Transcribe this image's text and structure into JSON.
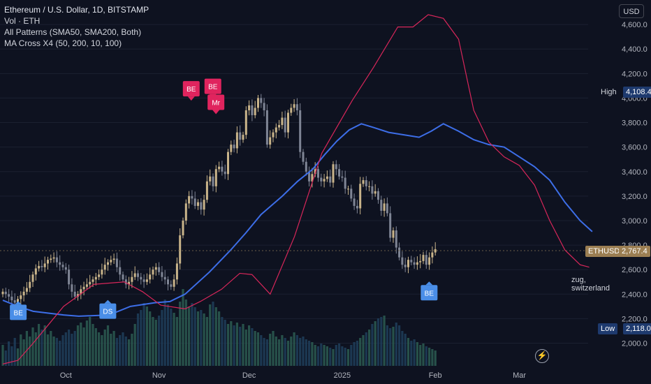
{
  "legend": {
    "title": "Ethereum / U.S. Dollar, 1D, BITSTAMP",
    "vol": "Vol · ETH",
    "patterns": "All Patterns (SMA50, SMA200, Both)",
    "macross": "MA Cross X4 (50, 200, 10, 100)"
  },
  "currency": "USD",
  "tags": {
    "high_label": "High",
    "high_value": "4,108.4",
    "symbol": "ETHUSD",
    "symbol_value": "2,767.4",
    "low_label": "Low",
    "low_value": "2,118.0"
  },
  "location": "zug, switzerland",
  "colors": {
    "bg": "#0e1220",
    "grid": "#1b2030",
    "up": "#c9b48a",
    "down": "#7f8595",
    "sma_slow": "#3d6ee8",
    "sma_fast": "#d8265a",
    "bear": "#e0245e",
    "bull": "#4a8ee8",
    "vol_up": "#2b5d52",
    "vol_down": "#1f3f5c"
  },
  "chart_data": {
    "type": "candlestick",
    "y_ticks": [
      "4,600.0",
      "4,400.0",
      "4,200.0",
      "4,000.0",
      "3,800.0",
      "3,600.0",
      "3,400.0",
      "3,200.0",
      "3,000.0",
      "2,800.0",
      "2,600.0",
      "2,400.0",
      "2,200.0",
      "2,000.0"
    ],
    "y_values": [
      4600,
      4400,
      4200,
      4000,
      3800,
      3600,
      3400,
      3200,
      3000,
      2800,
      2600,
      2400,
      2200,
      2000
    ],
    "ylim": [
      1815,
      4800
    ],
    "x_labels": [
      {
        "label": "Oct",
        "day": 0
      },
      {
        "label": "Nov",
        "day": 31
      },
      {
        "label": "Dec",
        "day": 61
      },
      {
        "label": "2025",
        "day": 92
      },
      {
        "label": "Feb",
        "day": 123
      },
      {
        "label": "Mar",
        "day": 151
      }
    ],
    "days": 145,
    "first_day": -21,
    "closes": [
      2420,
      2400,
      2380,
      2350,
      2330,
      2360,
      2390,
      2420,
      2450,
      2500,
      2560,
      2610,
      2630,
      2620,
      2650,
      2680,
      2690,
      2700,
      2660,
      2640,
      2620,
      2600,
      2480,
      2420,
      2380,
      2400,
      2440,
      2460,
      2480,
      2500,
      2520,
      2540,
      2560,
      2600,
      2640,
      2660,
      2680,
      2690,
      2620,
      2560,
      2520,
      2480,
      2500,
      2540,
      2570,
      2540,
      2520,
      2500,
      2520,
      2560,
      2600,
      2620,
      2580,
      2540,
      2520,
      2480,
      2460,
      2520,
      2650,
      2880,
      3000,
      3140,
      3200,
      3180,
      3120,
      3150,
      3090,
      3170,
      3320,
      3360,
      3280,
      3420,
      3440,
      3400,
      3380,
      3560,
      3620,
      3590,
      3720,
      3660,
      3700,
      3900,
      3940,
      3860,
      3920,
      4000,
      3960,
      3900,
      3620,
      3680,
      3720,
      3760,
      3780,
      3840,
      3720,
      3880,
      3920,
      3950,
      3900,
      3560,
      3480,
      3400,
      3320,
      3380,
      3420,
      3350,
      3320,
      3340,
      3360,
      3310,
      3460,
      3420,
      3360,
      3350,
      3260,
      3260,
      3180,
      3120,
      3100,
      3300,
      3330,
      3280,
      3280,
      3220,
      3240,
      3170,
      3080,
      3140,
      3060,
      2860,
      2920,
      2780,
      2700,
      2640,
      2620,
      2680,
      2660,
      2640,
      2660,
      2670,
      2720,
      2640,
      2700,
      2740,
      2767
    ],
    "series": [
      {
        "name": "SMA50",
        "values_key": "sma50"
      },
      {
        "name": "SMA200",
        "values_key": "sma200"
      }
    ],
    "sma200": [
      [
        0,
        2350
      ],
      [
        5,
        2300
      ],
      [
        10,
        2260
      ],
      [
        20,
        2230
      ],
      [
        25,
        2220
      ],
      [
        35,
        2230
      ],
      [
        42,
        2300
      ],
      [
        50,
        2330
      ],
      [
        55,
        2340
      ],
      [
        60,
        2400
      ],
      [
        68,
        2580
      ],
      [
        75,
        2760
      ],
      [
        80,
        2900
      ],
      [
        85,
        3050
      ],
      [
        92,
        3200
      ],
      [
        97,
        3320
      ],
      [
        102,
        3420
      ],
      [
        106,
        3540
      ],
      [
        110,
        3650
      ],
      [
        114,
        3740
      ],
      [
        118,
        3790
      ],
      [
        122,
        3760
      ],
      [
        127,
        3720
      ],
      [
        132,
        3700
      ],
      [
        137,
        3680
      ],
      [
        141,
        3730
      ],
      [
        145,
        3790
      ],
      [
        150,
        3730
      ],
      [
        155,
        3660
      ],
      [
        160,
        3620
      ],
      [
        165,
        3600
      ],
      [
        170,
        3520
      ],
      [
        175,
        3440
      ],
      [
        180,
        3330
      ],
      [
        185,
        3150
      ],
      [
        190,
        3000
      ],
      [
        194,
        2910
      ]
    ],
    "sma50": [
      [
        0,
        1830
      ],
      [
        5,
        1860
      ],
      [
        10,
        2000
      ],
      [
        15,
        2150
      ],
      [
        20,
        2300
      ],
      [
        30,
        2480
      ],
      [
        40,
        2500
      ],
      [
        46,
        2420
      ],
      [
        52,
        2310
      ],
      [
        60,
        2280
      ],
      [
        65,
        2340
      ],
      [
        72,
        2440
      ],
      [
        78,
        2570
      ],
      [
        82,
        2560
      ],
      [
        88,
        2400
      ],
      [
        96,
        2870
      ],
      [
        105,
        3550
      ],
      [
        115,
        3980
      ],
      [
        122,
        4250
      ],
      [
        130,
        4580
      ],
      [
        135,
        4580
      ],
      [
        140,
        4680
      ],
      [
        145,
        4650
      ],
      [
        150,
        4480
      ],
      [
        155,
        3900
      ],
      [
        160,
        3640
      ],
      [
        165,
        3520
      ],
      [
        170,
        3450
      ],
      [
        175,
        3290
      ],
      [
        180,
        3000
      ],
      [
        185,
        2760
      ],
      [
        190,
        2640
      ],
      [
        193,
        2620
      ]
    ],
    "volume": [
      30,
      22,
      35,
      28,
      40,
      25,
      45,
      38,
      50,
      42,
      55,
      48,
      60,
      52,
      58,
      45,
      50,
      42,
      40,
      36,
      44,
      48,
      52,
      46,
      50,
      58,
      62,
      55,
      65,
      70,
      60,
      54,
      48,
      44,
      52,
      58,
      46,
      50,
      40,
      44,
      48,
      42,
      38,
      46,
      60,
      75,
      80,
      90,
      85,
      78,
      70,
      66,
      72,
      80,
      95,
      88,
      82,
      76,
      70,
      92,
      110,
      95,
      85,
      90,
      84,
      78,
      80,
      75,
      70,
      88,
      92,
      84,
      78,
      70,
      66,
      60,
      64,
      58,
      62,
      56,
      60,
      52,
      58,
      54,
      50,
      48,
      44,
      40,
      38,
      46,
      50,
      42,
      38,
      44,
      40,
      36,
      42,
      48,
      44,
      40,
      42,
      38,
      36,
      34,
      30,
      28,
      32,
      30,
      28,
      26,
      24,
      30,
      32,
      28,
      26,
      24,
      30,
      34,
      36,
      40,
      44,
      48,
      52,
      60,
      64,
      68,
      70,
      72,
      58,
      54,
      56,
      62,
      58,
      50,
      46,
      40,
      36,
      38,
      34,
      30,
      32,
      28,
      26,
      24,
      22
    ],
    "labels": [
      {
        "text": "BE",
        "type": "bull",
        "day": 5,
        "price": 2240
      },
      {
        "text": "DS",
        "type": "bull",
        "day": 34,
        "price": 2250
      },
      {
        "text": "BE",
        "type": "bear",
        "day": 61,
        "price": 4070
      },
      {
        "text": "BE",
        "type": "bear",
        "day": 68,
        "price": 4090
      },
      {
        "text": "Mr",
        "type": "bear",
        "day": 69,
        "price": 3960
      },
      {
        "text": "BE",
        "type": "bull",
        "day": 138,
        "price": 2400
      }
    ]
  }
}
